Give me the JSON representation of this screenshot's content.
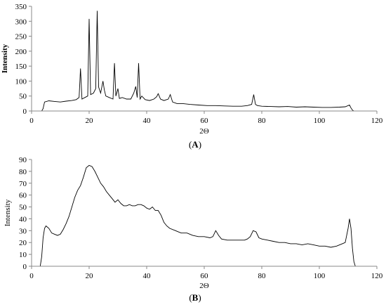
{
  "chart_data": [
    {
      "type": "line",
      "panel_label": "A",
      "xlabel": "2Θ",
      "ylabel": "Intensity",
      "xlim": [
        0,
        120
      ],
      "ylim": [
        0,
        350
      ],
      "xticks": [
        0,
        20,
        40,
        60,
        80,
        100,
        120
      ],
      "yticks": [
        0,
        50,
        100,
        150,
        200,
        250,
        300,
        350
      ],
      "grid": false,
      "series": [
        {
          "x": [
            3.5,
            4.0,
            4.5,
            6,
            8,
            10,
            12,
            14,
            15.5,
            16.5,
            17.0,
            17.5,
            18.5,
            19.5,
            20.0,
            20.5,
            21.5,
            22.3,
            22.8,
            23.3,
            24.0,
            24.8,
            25.3,
            25.8,
            27.0,
            28.3,
            28.8,
            29.3,
            30.0,
            30.5,
            31.5,
            33.0,
            34.5,
            35.5,
            36.2,
            36.7,
            37.2,
            37.7,
            38.3,
            39.5,
            41.0,
            42.5,
            43.5,
            44.0,
            44.8,
            46.0,
            47.5,
            48.2,
            49.0,
            50.5,
            52.5,
            55,
            58,
            61,
            64,
            67,
            70,
            73,
            75,
            76.5,
            77.2,
            77.8,
            78.5,
            80,
            83,
            86,
            89,
            92,
            95,
            98,
            101,
            104,
            107,
            109,
            110.5,
            111.0,
            111.5,
            112
          ],
          "y": [
            0,
            8,
            30,
            34,
            32,
            30,
            33,
            35,
            38,
            45,
            142,
            40,
            45,
            50,
            308,
            55,
            60,
            75,
            335,
            80,
            60,
            100,
            70,
            50,
            45,
            40,
            160,
            50,
            75,
            42,
            45,
            40,
            40,
            60,
            82,
            45,
            160,
            40,
            50,
            38,
            35,
            40,
            48,
            58,
            40,
            35,
            40,
            55,
            30,
            25,
            25,
            22,
            20,
            18,
            18,
            17,
            16,
            16,
            18,
            22,
            55,
            22,
            18,
            16,
            15,
            14,
            15,
            13,
            14,
            13,
            12,
            12,
            13,
            14,
            20,
            10,
            3,
            0
          ]
        }
      ]
    },
    {
      "type": "line",
      "panel_label": "B",
      "xlabel": "2Θ",
      "ylabel": "Intensity",
      "xlim": [
        0,
        120
      ],
      "ylim": [
        0,
        90
      ],
      "xticks": [
        0,
        20,
        40,
        60,
        80,
        100,
        120
      ],
      "yticks": [
        0,
        10,
        20,
        30,
        40,
        50,
        60,
        70,
        80,
        90
      ],
      "grid": false,
      "series": [
        {
          "x": [
            3.0,
            3.5,
            4.0,
            4.5,
            5.0,
            6,
            7,
            8,
            9,
            10,
            11,
            12,
            13,
            14,
            15,
            16,
            17,
            18,
            19,
            20,
            21,
            22,
            23,
            24,
            25,
            26,
            27,
            28,
            29,
            30,
            31,
            32,
            33,
            34,
            35,
            36,
            37,
            38,
            39,
            40,
            41,
            42,
            43,
            44,
            45,
            46,
            47,
            48,
            50,
            52,
            54,
            56,
            58,
            60,
            62,
            63,
            64,
            65,
            66,
            68,
            70,
            72,
            74,
            75,
            76,
            77,
            78,
            79,
            80,
            82,
            84,
            86,
            88,
            90,
            92,
            94,
            96,
            98,
            100,
            102,
            104,
            106,
            108,
            109,
            110,
            110.5,
            111,
            111.5,
            112,
            112.5
          ],
          "y": [
            0,
            8,
            24,
            32,
            34,
            32,
            28,
            27,
            26,
            27,
            31,
            36,
            42,
            50,
            58,
            64,
            68,
            75,
            83,
            85,
            84,
            80,
            75,
            70,
            67,
            63,
            60,
            57,
            54,
            56,
            53,
            51,
            51,
            52,
            51,
            51,
            52,
            52,
            51,
            49,
            48,
            50,
            47,
            47,
            43,
            37,
            34,
            32,
            30,
            28,
            28,
            26,
            25,
            25,
            24,
            25,
            30,
            26,
            23,
            22,
            22,
            22,
            22,
            23,
            25,
            30,
            29,
            24,
            23,
            22,
            21,
            20,
            20,
            19,
            19,
            18,
            19,
            18,
            17,
            17,
            16,
            17,
            19,
            20,
            32,
            40,
            32,
            15,
            4,
            0
          ]
        }
      ]
    }
  ]
}
